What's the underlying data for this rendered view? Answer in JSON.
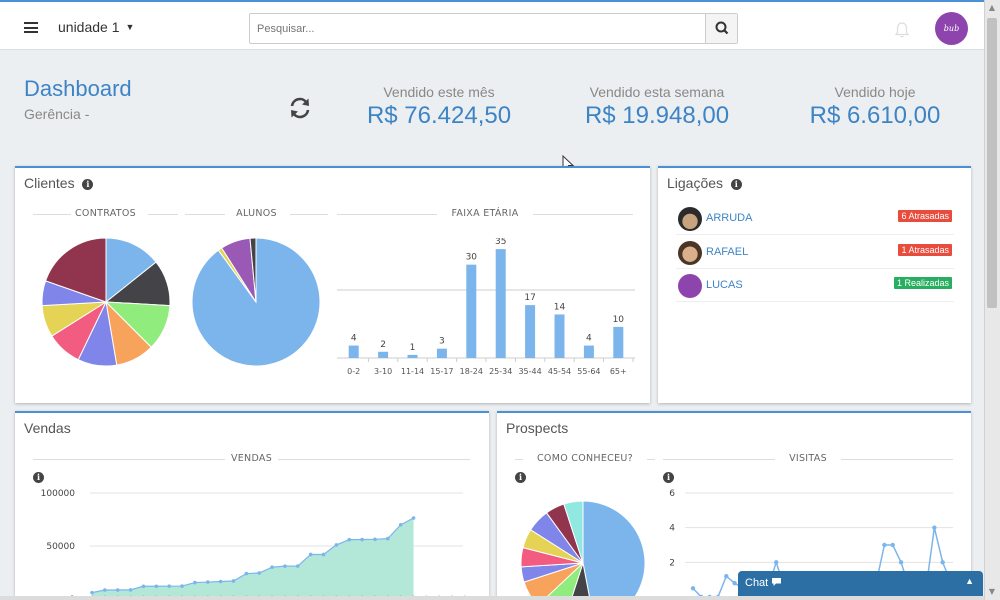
{
  "topbar": {
    "unit_label": "unidade 1",
    "search_placeholder": "Pesquisar...",
    "avatar_text": "bub"
  },
  "header": {
    "title": "Dashboard",
    "subtitle": "Gerência -",
    "stats": [
      {
        "label": "Vendido este mês",
        "value": "R$ 76.424,50"
      },
      {
        "label": "Vendido esta semana",
        "value": "R$ 19.948,00"
      },
      {
        "label": "Vendido hoje",
        "value": "R$ 6.610,00"
      }
    ]
  },
  "clientes": {
    "title": "Clientes",
    "sections": [
      "CONTRATOS",
      "ALUNOS",
      "FAIXA ETÁRIA"
    ]
  },
  "ligacoes": {
    "title": "Ligações",
    "items": [
      {
        "name": "ARRUDA",
        "badge": "6 Atrasadas",
        "badge_color": "#e74c3c"
      },
      {
        "name": "RAFAEL",
        "badge": "1 Atrasadas",
        "badge_color": "#e74c3c"
      },
      {
        "name": "LUCAS",
        "badge": "1 Realizadas",
        "badge_color": "#27ae60"
      }
    ]
  },
  "vendas": {
    "title": "Vendas",
    "section": "VENDAS"
  },
  "prospects": {
    "title": "Prospects",
    "sections": [
      "COMO CONHECEU?",
      "VISITAS"
    ]
  },
  "chat": {
    "label": "Chat"
  },
  "colors": {
    "accent": "#4a90d6",
    "brand_text": "#3d84c6",
    "bar": "#7cb5ec",
    "area": "#b3e7d8",
    "avatar": "#8e44ad"
  },
  "chart_data": [
    {
      "type": "pie",
      "title": "CONTRATOS",
      "values": [
        16,
        13,
        13,
        11,
        11,
        10,
        9,
        7,
        22
      ],
      "colors": [
        "#7cb5ec",
        "#434348",
        "#90ed7d",
        "#f7a35c",
        "#8085e9",
        "#f15c80",
        "#e4d354",
        "#8085e9",
        "#91354f"
      ]
    },
    {
      "type": "pie",
      "title": "ALUNOS",
      "values": [
        90,
        1,
        7.5,
        1.5
      ],
      "colors": [
        "#7cb5ec",
        "#e4d354",
        "#9b59b6",
        "#434348"
      ]
    },
    {
      "type": "bar",
      "title": "FAIXA ETÁRIA",
      "categories": [
        "0-2",
        "3-10",
        "11-14",
        "15-17",
        "18-24",
        "25-34",
        "35-44",
        "45-54",
        "55-64",
        "65+"
      ],
      "values": [
        4,
        2,
        1,
        3,
        30,
        35,
        17,
        14,
        4,
        10
      ],
      "ylim": [
        0,
        36
      ]
    },
    {
      "type": "area",
      "title": "VENDAS",
      "yticks": [
        "100000",
        "50000",
        "0"
      ],
      "ylim": [
        0,
        100000
      ],
      "series": [
        {
          "values": [
            6000,
            8500,
            8500,
            8600,
            12000,
            12000,
            12100,
            12200,
            15500,
            16000,
            16500,
            17000,
            24000,
            24500,
            30000,
            31000,
            31100,
            42000,
            42000,
            51000,
            56000,
            56100,
            56300,
            57000,
            70000,
            76400
          ]
        },
        {
          "values": [
            2000,
            2000,
            2000,
            2000,
            2000,
            2000,
            2000,
            2000,
            2000,
            2000,
            2000,
            2000,
            2000,
            2000,
            2000,
            2000,
            2000,
            2000,
            2000,
            2000,
            2000,
            2000,
            2000,
            2000,
            2000,
            2000,
            2000,
            2000,
            2000,
            2000
          ]
        }
      ]
    },
    {
      "type": "pie",
      "title": "COMO CONHECEU?",
      "values": [
        47,
        8,
        8,
        7,
        4,
        5,
        5,
        6,
        5,
        5
      ],
      "colors": [
        "#7cb5ec",
        "#434348",
        "#90ed7d",
        "#f7a35c",
        "#8085e9",
        "#f15c80",
        "#e4d354",
        "#8085e9",
        "#91354f",
        "#91e8e1"
      ]
    },
    {
      "type": "line",
      "title": "VISITAS",
      "yticks": [
        "6",
        "4",
        "2"
      ],
      "ylim": [
        0,
        6
      ],
      "values": [
        0.5,
        0,
        0,
        0,
        1.2,
        0.8,
        0.5,
        1,
        0.5,
        0.5,
        2,
        0.5,
        0,
        0,
        0,
        0,
        0.5,
        0.5,
        0.5,
        0.8,
        0.5,
        0.5,
        0.8,
        3,
        3,
        2,
        0.5,
        0.5,
        0.5,
        4,
        2,
        0.8
      ]
    }
  ]
}
